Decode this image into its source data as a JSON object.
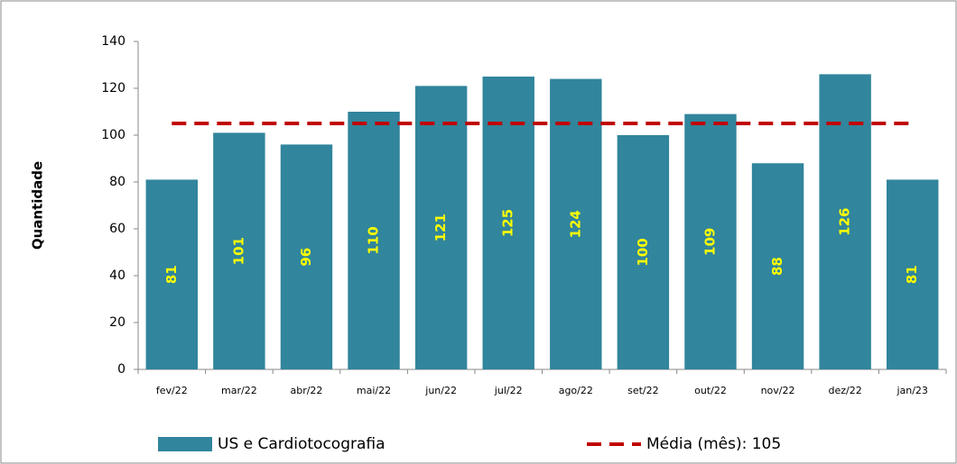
{
  "chart_data": {
    "type": "bar",
    "y_label": "Quantidade",
    "categories": [
      "fev/22",
      "mar/22",
      "abr/22",
      "mai/22",
      "jun/22",
      "jul/22",
      "ago/22",
      "set/22",
      "out/22",
      "nov/22",
      "dez/22",
      "jan/23"
    ],
    "series": [
      {
        "name": "US e Cardiotocografia",
        "color": "#31859c",
        "label_color": "#ffff00",
        "values": [
          81,
          101,
          96,
          110,
          121,
          125,
          124,
          100,
          109,
          88,
          126,
          81
        ]
      },
      {
        "name": "Média (mês): 105",
        "type": "line",
        "dashed": true,
        "color": "#c00000",
        "values": [
          105,
          105,
          105,
          105,
          105,
          105,
          105,
          105,
          105,
          105,
          105,
          105
        ]
      }
    ],
    "ylim": [
      0,
      140
    ],
    "yticks": [
      0,
      20,
      40,
      60,
      80,
      100,
      120,
      140
    ],
    "grid": false
  }
}
